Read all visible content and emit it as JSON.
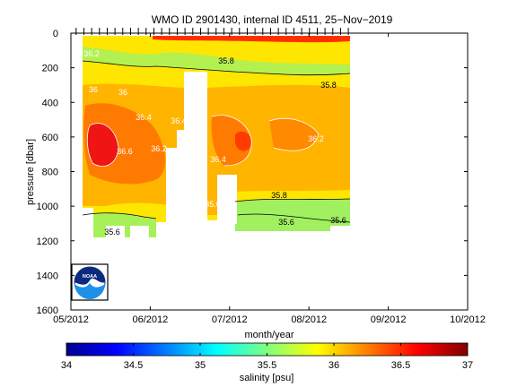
{
  "chart_data": {
    "type": "heatmap",
    "title": "WMO ID 2901430, internal ID 4511, 25−Nov−2019",
    "xlabel": "month/year",
    "ylabel": "pressure [dbar]",
    "x_tick_labels": [
      "05/2012",
      "06/2012",
      "07/2012",
      "08/2012",
      "09/2012",
      "10/2012"
    ],
    "y_tick_labels": [
      "0",
      "200",
      "400",
      "600",
      "800",
      "1000",
      "1200",
      "1400",
      "1600"
    ],
    "ylim": [
      1600,
      0
    ],
    "y_reversed": true,
    "colorbar": {
      "label": "salinity [psu]",
      "ticks": [
        "34",
        "34.5",
        "35",
        "35.5",
        "36",
        "36.5",
        "37"
      ],
      "range": [
        34,
        37
      ],
      "colors": [
        "#00008f",
        "#0000ff",
        "#0080ff",
        "#00ffff",
        "#80ff80",
        "#ffff00",
        "#ff8000",
        "#ff0000",
        "#800000"
      ]
    },
    "profile_dates": [
      "2012-05-03",
      "2012-05-06",
      "2012-05-09",
      "2012-05-12",
      "2012-05-15",
      "2012-05-18",
      "2012-05-21",
      "2012-05-24",
      "2012-05-27",
      "2012-05-30",
      "2012-06-02",
      "2012-06-05",
      "2012-06-08",
      "2012-06-11",
      "2012-06-14",
      "2012-06-17",
      "2012-06-20",
      "2012-06-23",
      "2012-06-26",
      "2012-06-29",
      "2012-07-02",
      "2012-07-05",
      "2012-07-08",
      "2012-07-11",
      "2012-07-14",
      "2012-07-17",
      "2012-07-20",
      "2012-07-23",
      "2012-07-26",
      "2012-07-29",
      "2012-08-01",
      "2012-08-04",
      "2012-08-07",
      "2012-08-10",
      "2012-08-13",
      "2012-08-16"
    ],
    "contour_labels": [
      "35.8",
      "35.6",
      "35.8",
      "36.4",
      "36.4",
      "36.2",
      "36.6",
      "36.2",
      "36.4",
      "36.2",
      "35.8",
      "35.6",
      "35.6",
      "35.6",
      "36",
      "36"
    ],
    "logo": "NOAA"
  }
}
